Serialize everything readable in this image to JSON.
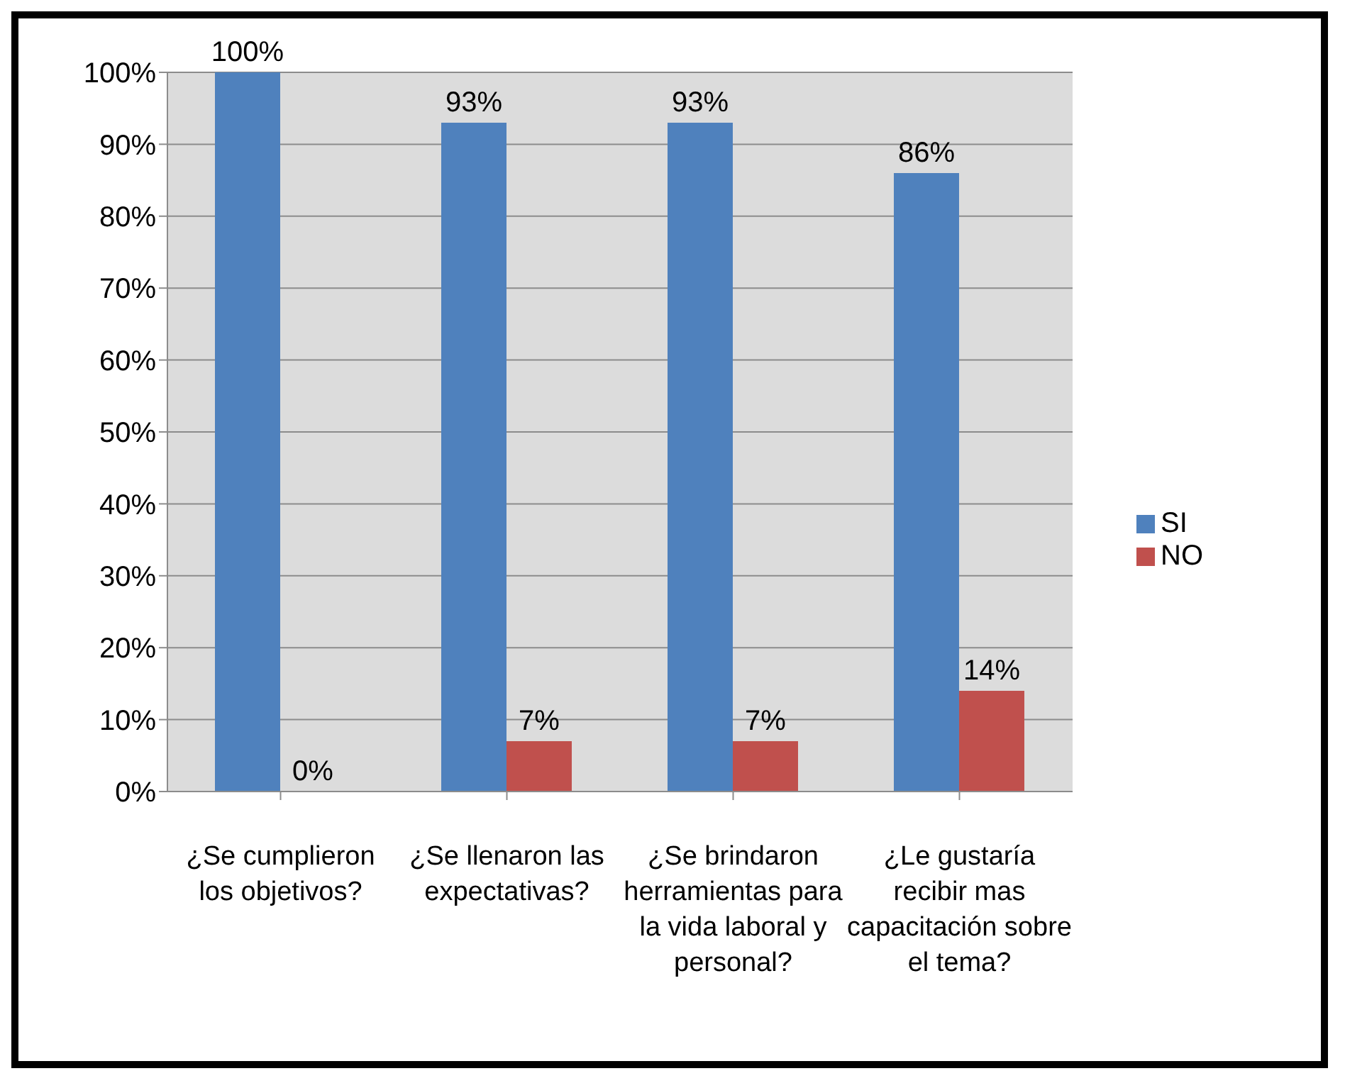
{
  "chart_data": {
    "type": "bar",
    "categories": [
      "¿Se cumplieron los objetivos?",
      "¿Se llenaron las expectativas?",
      "¿Se brindaron herramientas para la vida laboral y personal?",
      "¿Le gustaría recibir mas capacitación sobre el tema?"
    ],
    "series": [
      {
        "name": "SI",
        "color": "#4f81bd",
        "values": [
          100,
          93,
          93,
          86
        ],
        "value_labels": [
          "100%",
          "93%",
          "93%",
          "86%"
        ]
      },
      {
        "name": "NO",
        "color": "#c0504d",
        "values": [
          0,
          7,
          7,
          14
        ],
        "value_labels": [
          "0%",
          "7%",
          "7%",
          "14%"
        ]
      }
    ],
    "ylim": [
      0,
      100
    ],
    "yticks": [
      {
        "value": 0,
        "label": "0%"
      },
      {
        "value": 10,
        "label": "10%"
      },
      {
        "value": 20,
        "label": "20%"
      },
      {
        "value": 30,
        "label": "30%"
      },
      {
        "value": 40,
        "label": "40%"
      },
      {
        "value": 50,
        "label": "50%"
      },
      {
        "value": 60,
        "label": "60%"
      },
      {
        "value": 70,
        "label": "70%"
      },
      {
        "value": 80,
        "label": "80%"
      },
      {
        "value": 90,
        "label": "90%"
      },
      {
        "value": 100,
        "label": "100%"
      }
    ],
    "grid": "y",
    "legend": "right"
  }
}
